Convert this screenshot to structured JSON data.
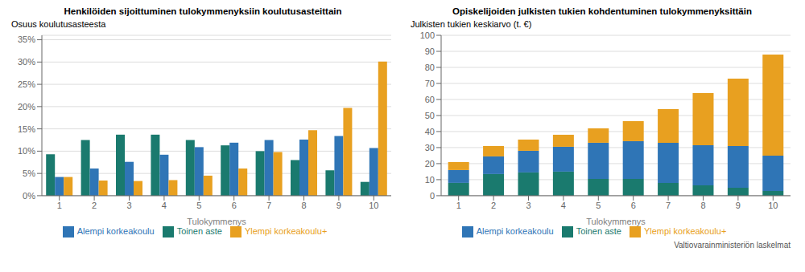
{
  "chart_data": [
    {
      "type": "bar",
      "title": "Henkilöiden sijoittuminen tulokymmenyksiin koulutusasteittain",
      "ylabel": "Osuus koulutusasteesta",
      "xlabel": "Tulokymmenys",
      "categories": [
        1,
        2,
        3,
        4,
        5,
        6,
        7,
        8,
        9,
        10
      ],
      "series": [
        {
          "name": "Toinen aste",
          "color": "#1a7a6e",
          "values": [
            9.3,
            12.5,
            13.7,
            13.7,
            12.5,
            11.3,
            10.0,
            8.0,
            5.7,
            3.1
          ]
        },
        {
          "name": "Alempi korkeakoulu",
          "color": "#2f75b6",
          "values": [
            4.2,
            6.1,
            7.6,
            9.2,
            10.9,
            11.9,
            12.5,
            12.6,
            13.4,
            10.7
          ]
        },
        {
          "name": "Ylempi korkeakoulu+",
          "color": "#e8a020",
          "values": [
            4.2,
            3.4,
            3.3,
            3.5,
            4.5,
            6.1,
            9.8,
            14.7,
            19.7,
            30.1
          ]
        }
      ],
      "ylim": [
        0,
        36
      ],
      "yticks": [
        {
          "value": 0,
          "label": "0%"
        },
        {
          "value": 5,
          "label": "5%"
        },
        {
          "value": 10,
          "label": "10%"
        },
        {
          "value": 15,
          "label": "15%"
        },
        {
          "value": 20,
          "label": "20%"
        },
        {
          "value": 25,
          "label": "25%"
        },
        {
          "value": 30,
          "label": "30%"
        },
        {
          "value": 35,
          "label": "35%"
        }
      ],
      "grid": true,
      "legend": "bottom"
    },
    {
      "type": "bar",
      "stacked": true,
      "title": "Opiskelijoiden julkisten tukien kohdentuminen tulokymmenyksittäin",
      "ylabel": "Julkisten tukien keskiarvo (t. €)",
      "xlabel": "Tulokymmenys",
      "annotations": [
        "Valtiovarainministeriön laskelmat"
      ],
      "categories": [
        1,
        2,
        3,
        4,
        5,
        6,
        7,
        8,
        9,
        10
      ],
      "series": [
        {
          "name": "Toinen aste",
          "color": "#1a7a6e",
          "values": [
            8.0,
            13.5,
            14.5,
            15.0,
            10.5,
            10.5,
            8.0,
            6.5,
            5.0,
            3.0
          ]
        },
        {
          "name": "Alempi korkeakoulu",
          "color": "#2f75b6",
          "values": [
            8.0,
            11.0,
            13.5,
            15.5,
            22.5,
            23.5,
            25.0,
            25.0,
            26.0,
            22.0
          ]
        },
        {
          "name": "Ylempi korkeakoulu+",
          "color": "#e8a020",
          "values": [
            5.0,
            6.5,
            7.0,
            7.5,
            9.0,
            12.5,
            21.0,
            32.5,
            42.0,
            63.0
          ]
        }
      ],
      "ylim": [
        0,
        100
      ],
      "yticks": [
        0,
        10,
        20,
        30,
        40,
        50,
        60,
        70,
        80,
        90,
        100
      ],
      "grid": true,
      "legend": "bottom"
    }
  ]
}
